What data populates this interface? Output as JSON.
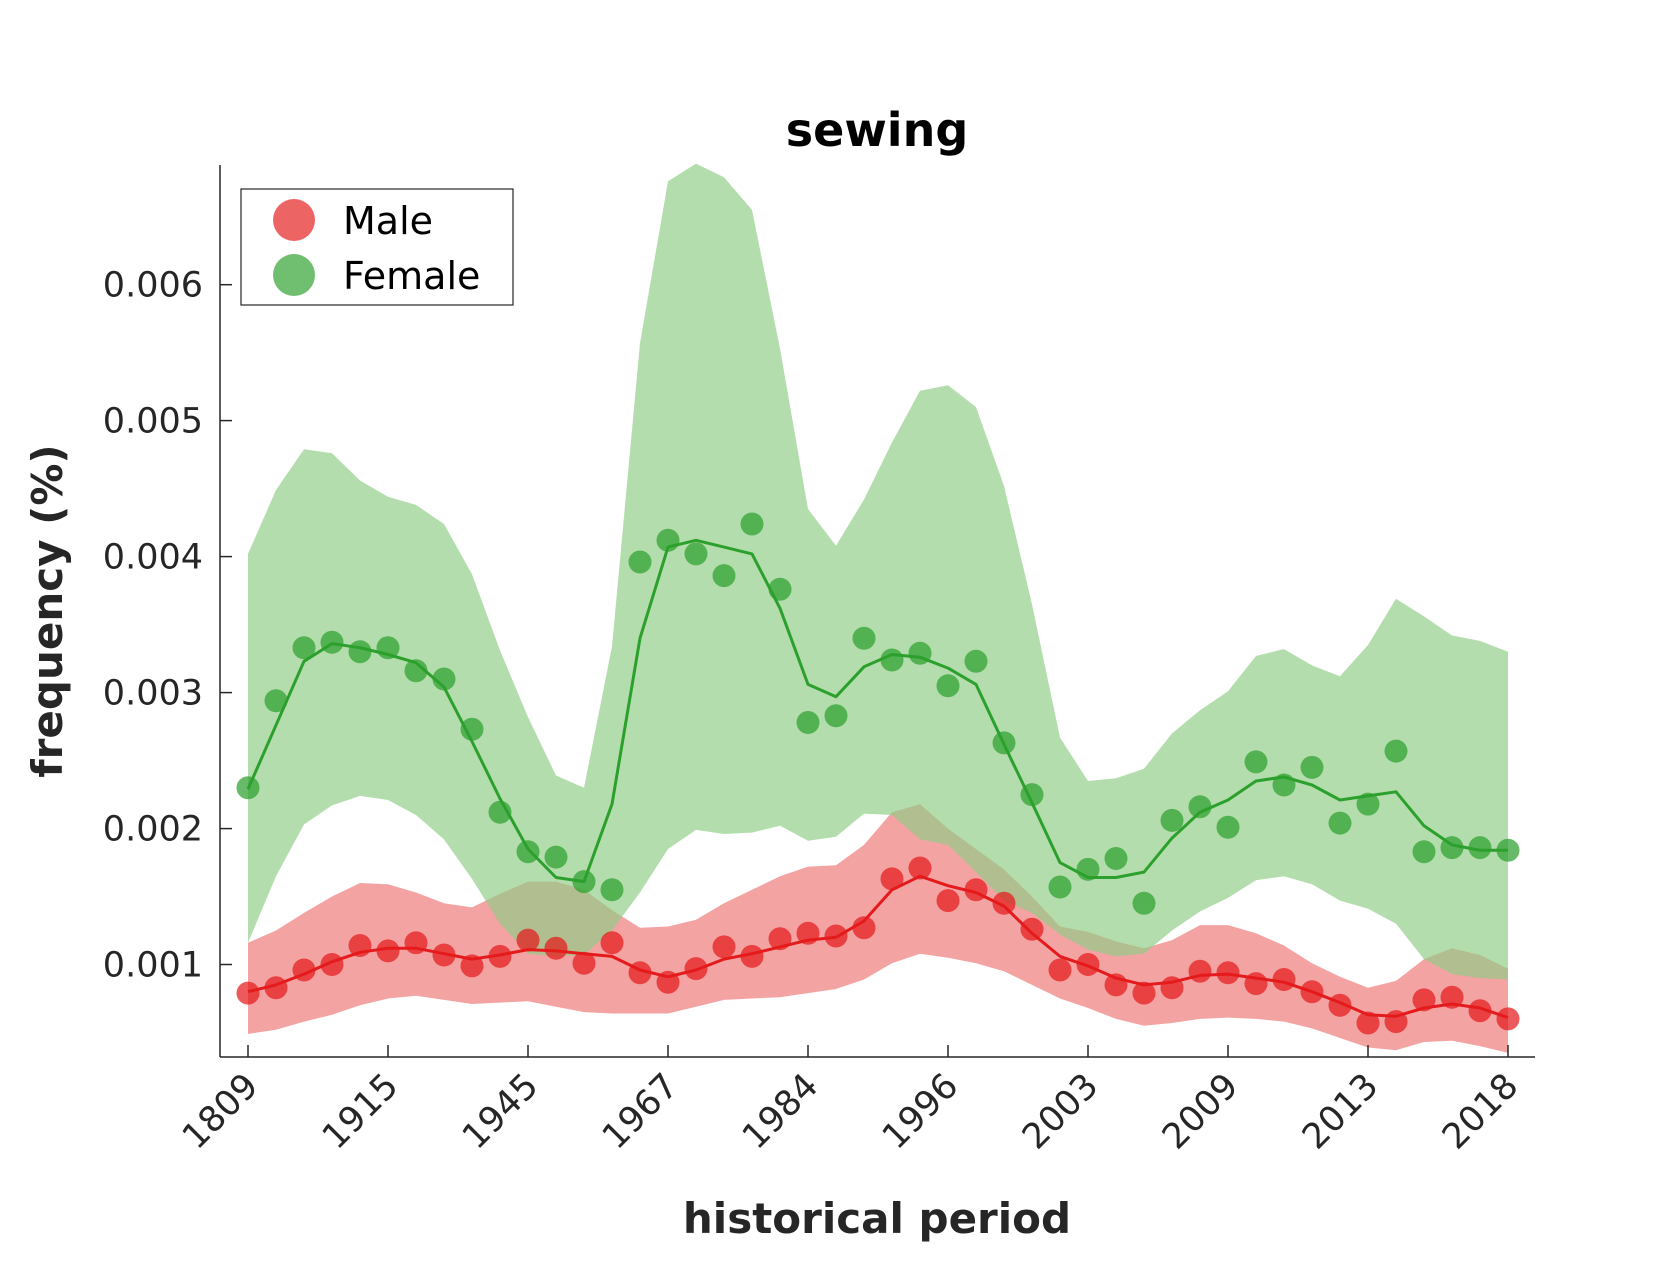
{
  "chart_data": {
    "type": "line",
    "title": "sewing",
    "xlabel": "historical period",
    "ylabel": "frequency (%)",
    "ylim": [
      0.00032,
      0.00688
    ],
    "y_ticks": [
      "0.001",
      "0.002",
      "0.003",
      "0.004",
      "0.005",
      "0.006"
    ],
    "y_tick_values": [
      0.001,
      0.002,
      0.003,
      0.004,
      0.005,
      0.006
    ],
    "x_tick_labels": [
      "1809",
      "1915",
      "1945",
      "1967",
      "1984",
      "1996",
      "2003",
      "2009",
      "2013",
      "2018"
    ],
    "x_tick_positions": [
      0,
      5,
      10,
      15,
      20,
      25,
      30,
      35,
      40,
      45
    ],
    "n_points": 46,
    "legend": {
      "position": "top-left",
      "entries": [
        "Male",
        "Female"
      ]
    },
    "grid": false,
    "series": [
      {
        "name": "Male",
        "color": "#e41a1c",
        "band_color": "#f08080",
        "points": [
          0.00079,
          0.00083,
          0.00096,
          0.001,
          0.00114,
          0.0011,
          0.00116,
          0.00107,
          0.00099,
          0.00106,
          0.00118,
          0.00112,
          0.00101,
          0.00116,
          0.00094,
          0.00087,
          0.00097,
          0.00113,
          0.00106,
          0.00119,
          0.00123,
          0.00121,
          0.00127,
          0.00163,
          0.00171,
          0.00147,
          0.00155,
          0.00145,
          0.00126,
          0.00096,
          0.001,
          0.00085,
          0.00079,
          0.00083,
          0.00095,
          0.00094,
          0.00086,
          0.00089,
          0.0008,
          0.0007,
          0.00057,
          0.00058,
          0.00074,
          0.00076,
          0.00066,
          0.0006
        ],
        "trend": [
          0.0008,
          0.00085,
          0.00093,
          0.00102,
          0.00109,
          0.00112,
          0.00112,
          0.00108,
          0.00104,
          0.00107,
          0.00111,
          0.0011,
          0.00108,
          0.00106,
          0.00096,
          0.00091,
          0.00096,
          0.00104,
          0.00108,
          0.00113,
          0.00118,
          0.0012,
          0.00132,
          0.00155,
          0.00165,
          0.00158,
          0.00153,
          0.00143,
          0.00123,
          0.00106,
          0.00099,
          0.0009,
          0.00085,
          0.00087,
          0.00092,
          0.00093,
          0.0009,
          0.00087,
          0.0008,
          0.00072,
          0.00063,
          0.00062,
          0.00068,
          0.00071,
          0.00068,
          0.00061
        ],
        "upper": [
          0.00116,
          0.00125,
          0.00138,
          0.0015,
          0.0016,
          0.00159,
          0.00153,
          0.00145,
          0.00142,
          0.00152,
          0.00161,
          0.00161,
          0.00155,
          0.0014,
          0.00127,
          0.00128,
          0.00133,
          0.00145,
          0.00155,
          0.00165,
          0.00172,
          0.00173,
          0.00188,
          0.00212,
          0.00218,
          0.002,
          0.00185,
          0.0017,
          0.0015,
          0.00128,
          0.00124,
          0.00117,
          0.00112,
          0.00118,
          0.00129,
          0.00129,
          0.00123,
          0.00114,
          0.00101,
          0.00091,
          0.00083,
          0.00088,
          0.00104,
          0.00112,
          0.00107,
          0.00097
        ],
        "lower": [
          0.00049,
          0.00052,
          0.00058,
          0.00063,
          0.0007,
          0.00075,
          0.00077,
          0.00074,
          0.00071,
          0.00072,
          0.00073,
          0.00069,
          0.00065,
          0.00064,
          0.00064,
          0.00064,
          0.00069,
          0.00074,
          0.00075,
          0.00076,
          0.00079,
          0.00082,
          0.00089,
          0.00101,
          0.00108,
          0.00105,
          0.00101,
          0.00095,
          0.00085,
          0.00075,
          0.00068,
          0.0006,
          0.00055,
          0.00057,
          0.0006,
          0.00061,
          0.0006,
          0.00058,
          0.00053,
          0.00046,
          0.00039,
          0.00037,
          0.00043,
          0.00044,
          0.0004,
          0.00035
        ]
      },
      {
        "name": "Female",
        "color": "#2ca02c",
        "band_color": "#90cd88",
        "points": [
          0.0023,
          0.00294,
          0.00333,
          0.00337,
          0.0033,
          0.00333,
          0.00316,
          0.0031,
          0.00273,
          0.00212,
          0.00183,
          0.00179,
          0.00161,
          0.00155,
          0.00396,
          0.00412,
          0.00402,
          0.00386,
          0.00424,
          0.00376,
          0.00278,
          0.00283,
          0.0034,
          0.00324,
          0.00329,
          0.00305,
          0.00323,
          0.00263,
          0.00225,
          0.00157,
          0.0017,
          0.00178,
          0.00145,
          0.00206,
          0.00216,
          0.00201,
          0.00249,
          0.00232,
          0.00245,
          0.00204,
          0.00218,
          0.00257,
          0.00183,
          0.00186,
          0.00186,
          0.00184
        ],
        "trend": [
          0.00229,
          0.00276,
          0.00323,
          0.00336,
          0.00333,
          0.00328,
          0.00322,
          0.00304,
          0.00264,
          0.00222,
          0.00185,
          0.00164,
          0.00161,
          0.00218,
          0.0034,
          0.00407,
          0.00412,
          0.00407,
          0.00402,
          0.00362,
          0.00306,
          0.00297,
          0.00319,
          0.00328,
          0.00326,
          0.00318,
          0.00306,
          0.00262,
          0.00219,
          0.00175,
          0.00164,
          0.00164,
          0.00168,
          0.00193,
          0.00212,
          0.00221,
          0.00235,
          0.00238,
          0.00232,
          0.00221,
          0.00224,
          0.00227,
          0.00202,
          0.00188,
          0.00184,
          0.00184
        ],
        "upper": [
          0.00402,
          0.00449,
          0.00479,
          0.00476,
          0.00456,
          0.00444,
          0.00438,
          0.00424,
          0.00387,
          0.00331,
          0.00282,
          0.00239,
          0.0023,
          0.00334,
          0.00557,
          0.00676,
          0.00689,
          0.00679,
          0.00655,
          0.00553,
          0.00435,
          0.00408,
          0.00442,
          0.00484,
          0.00522,
          0.00526,
          0.0051,
          0.00452,
          0.00365,
          0.00267,
          0.00235,
          0.00237,
          0.00244,
          0.0027,
          0.00287,
          0.00301,
          0.00327,
          0.00332,
          0.0032,
          0.00312,
          0.00335,
          0.00369,
          0.00356,
          0.00342,
          0.00338,
          0.0033
        ],
        "lower": [
          0.00116,
          0.00165,
          0.00203,
          0.00217,
          0.00224,
          0.00221,
          0.0021,
          0.00192,
          0.00163,
          0.0013,
          0.00108,
          0.00106,
          0.00107,
          0.00125,
          0.00153,
          0.00185,
          0.00199,
          0.00196,
          0.00197,
          0.00202,
          0.00191,
          0.00194,
          0.00211,
          0.0021,
          0.00192,
          0.00188,
          0.00168,
          0.00147,
          0.00138,
          0.00122,
          0.00111,
          0.00106,
          0.00108,
          0.00125,
          0.00139,
          0.00149,
          0.00162,
          0.00165,
          0.00159,
          0.00147,
          0.00141,
          0.0013,
          0.00104,
          0.00093,
          0.0009,
          0.00089
        ]
      }
    ]
  }
}
